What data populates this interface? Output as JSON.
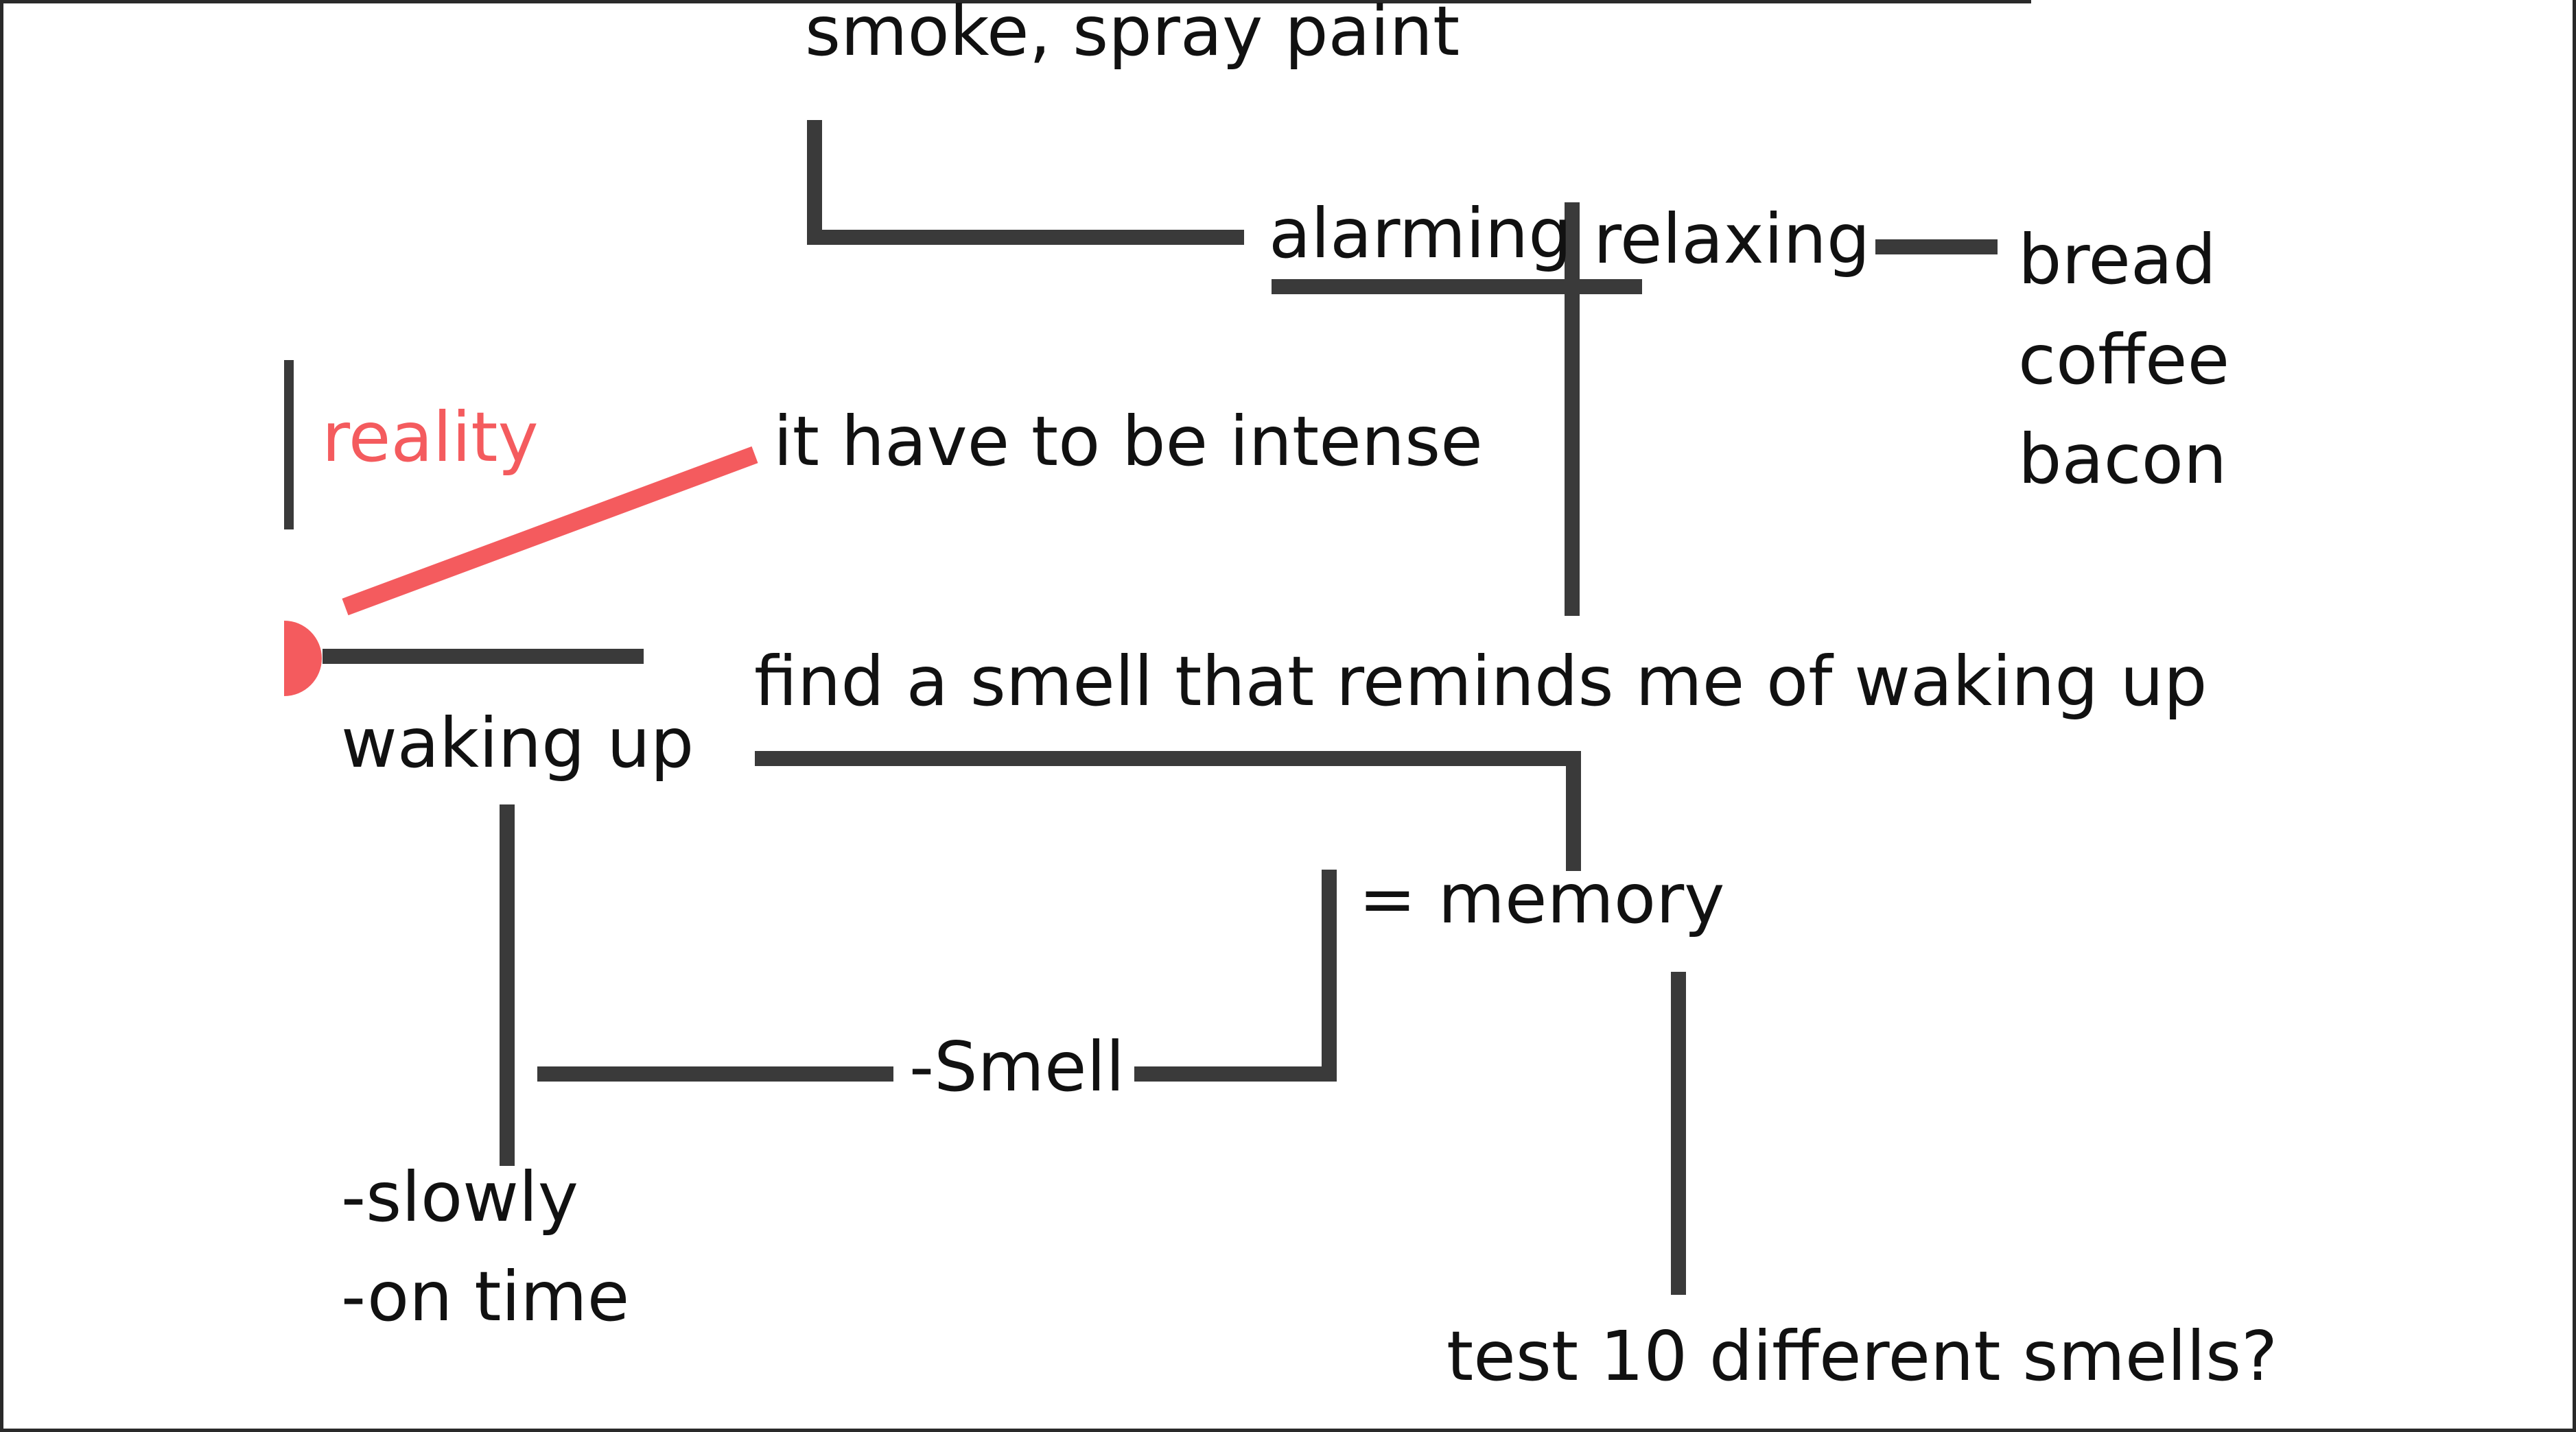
{
  "colors": {
    "line": "#3a3a3a",
    "text": "#111111",
    "accent": "#f45b5e",
    "background": "#ffffff"
  },
  "labels": {
    "top_smells": "smoke, spray paint",
    "alarming": "alarming",
    "relaxing": "relaxing",
    "relaxing_smells": [
      "bread",
      "coffee",
      "bacon"
    ],
    "reality": "reality",
    "intense": "it have to be intense",
    "goal": "find a smell that reminds me of waking up",
    "waking_up": "waking up",
    "memory": "= memory",
    "smell": "-Smell",
    "ways": [
      "-slowly",
      "-on time"
    ],
    "test": "test 10 different smells?"
  }
}
